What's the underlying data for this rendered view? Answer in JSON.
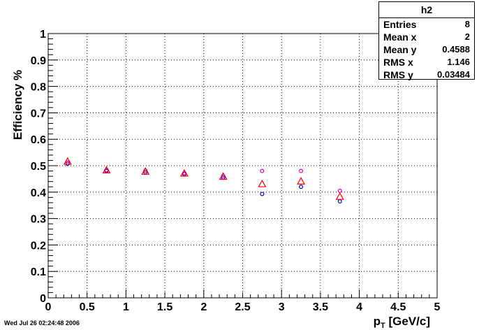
{
  "timestamp": "Wed Jul 26 02:24:48 2006",
  "stats_box": {
    "title": "h2",
    "rows": [
      {
        "label": "Entries",
        "value": "8"
      },
      {
        "label": "Mean x",
        "value": "2"
      },
      {
        "label": "Mean y",
        "value": "0.4588"
      },
      {
        "label": "RMS x",
        "value": "1.146"
      },
      {
        "label": "RMS y",
        "value": "0.03484"
      }
    ]
  },
  "chart_data": {
    "type": "scatter",
    "title": "",
    "xlabel_main": "p",
    "xlabel_sub": "T",
    "xlabel_rest": " [GeV/c]",
    "ylabel": "Efficiency %",
    "xlim": [
      0,
      5
    ],
    "ylim": [
      0,
      1
    ],
    "x_ticks": [
      "0",
      "0.5",
      "1",
      "1.5",
      "2",
      "2.5",
      "3",
      "3.5",
      "4",
      "4.5",
      "5"
    ],
    "y_ticks": [
      "0",
      "0.1",
      "0.2",
      "0.3",
      "0.4",
      "0.5",
      "0.6",
      "0.7",
      "0.8",
      "0.9",
      "1"
    ],
    "grid": true,
    "x": [
      0.25,
      0.75,
      1.25,
      1.75,
      2.25,
      2.75,
      3.25,
      3.75
    ],
    "series": [
      {
        "marker": "circle",
        "color": "#0000cc",
        "values": [
          0.507,
          0.48,
          0.475,
          0.468,
          0.455,
          0.393,
          0.42,
          0.365
        ]
      },
      {
        "marker": "circle",
        "color": "#cc00cc",
        "values": [
          0.512,
          0.483,
          0.481,
          0.472,
          0.461,
          0.48,
          0.48,
          0.405
        ]
      },
      {
        "marker": "triangle",
        "color": "#ff0000",
        "values": [
          0.515,
          0.482,
          0.477,
          0.47,
          0.458,
          0.43,
          0.44,
          0.382
        ]
      }
    ]
  }
}
